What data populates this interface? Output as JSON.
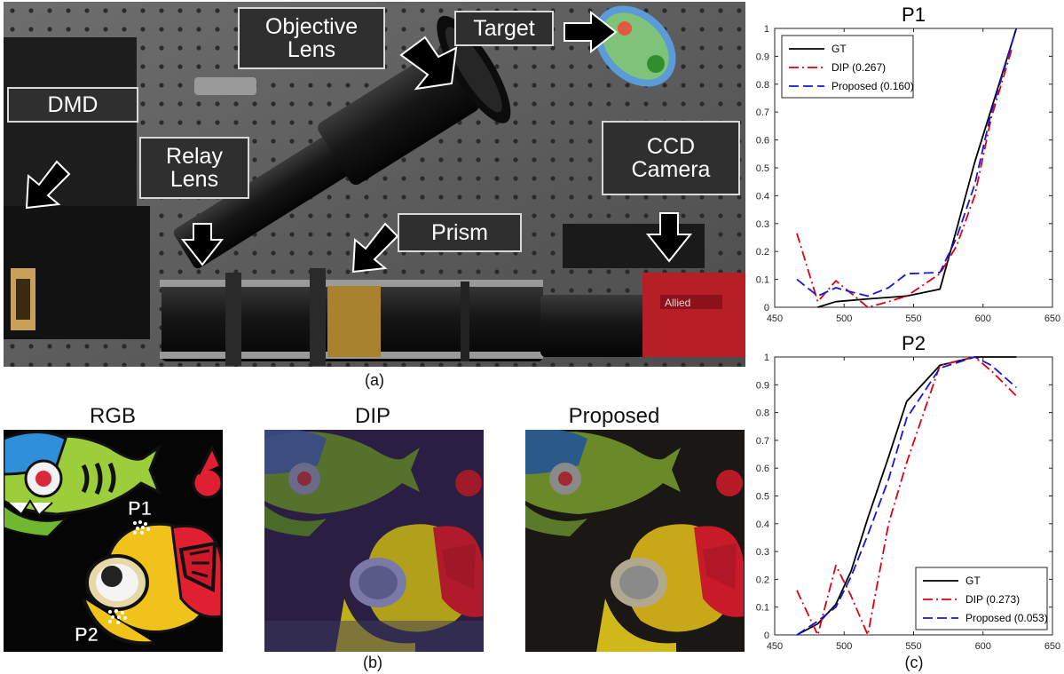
{
  "panel_a": {
    "labels": {
      "objective": "Objective\nLens",
      "target": "Target",
      "dmd": "DMD",
      "relay": "Relay\nLens",
      "ccd": "CCD\nCamera",
      "prism": "Prism"
    },
    "camera_brand": "Allied",
    "caption": "(a)"
  },
  "panel_b": {
    "titles": {
      "rgb": "RGB",
      "dip": "DIP",
      "proposed": "Proposed"
    },
    "points": {
      "p1": "P1",
      "p2": "P2"
    },
    "caption": "(b)"
  },
  "panel_c": {
    "caption": "(c)"
  },
  "chart_data": [
    {
      "type": "line",
      "title": "P1",
      "xlim": [
        450,
        650
      ],
      "ylim": [
        0,
        1
      ],
      "xticks": [
        450,
        500,
        550,
        600,
        650
      ],
      "yticks": [
        0,
        0.1,
        0.2,
        0.3,
        0.4,
        0.5,
        0.6,
        0.7,
        0.8,
        0.9,
        1
      ],
      "legend_position": "top-left",
      "series": [
        {
          "name": "GT",
          "color": "#000000",
          "dash": "solid",
          "x": [
            481,
            494,
            517,
            545,
            569,
            581,
            594,
            624
          ],
          "y": [
            0.0,
            0.02,
            0.03,
            0.04,
            0.065,
            0.28,
            0.52,
            1.0
          ]
        },
        {
          "name": "DIP (0.267)",
          "color": "#e0000f",
          "dash": "dashdot",
          "x": [
            466,
            481,
            494,
            505,
            517,
            532,
            545,
            569,
            581,
            594,
            606,
            621
          ],
          "y": [
            0.265,
            0.02,
            0.095,
            0.05,
            0.0,
            0.02,
            0.04,
            0.12,
            0.22,
            0.4,
            0.68,
            0.93
          ]
        },
        {
          "name": "Proposed (0.160)",
          "color": "#1515e0",
          "dash": "dash",
          "x": [
            466,
            481,
            494,
            505,
            517,
            532,
            545,
            569,
            581,
            594,
            606,
            624
          ],
          "y": [
            0.1,
            0.04,
            0.07,
            0.055,
            0.04,
            0.07,
            0.12,
            0.125,
            0.25,
            0.44,
            0.7,
            1.0
          ]
        }
      ]
    },
    {
      "type": "line",
      "title": "P2",
      "xlim": [
        450,
        650
      ],
      "ylim": [
        0,
        1
      ],
      "xticks": [
        450,
        500,
        550,
        600,
        650
      ],
      "yticks": [
        0,
        0.1,
        0.2,
        0.3,
        0.4,
        0.5,
        0.6,
        0.7,
        0.8,
        0.9,
        1
      ],
      "legend_position": "bottom-right",
      "series": [
        {
          "name": "GT",
          "color": "#000000",
          "dash": "solid",
          "x": [
            466,
            481,
            494,
            505,
            517,
            532,
            545,
            569,
            594,
            624
          ],
          "y": [
            0.0,
            0.04,
            0.11,
            0.23,
            0.42,
            0.64,
            0.84,
            0.97,
            1.0,
            1.0
          ]
        },
        {
          "name": "DIP (0.273)",
          "color": "#e0000f",
          "dash": "dashdot",
          "x": [
            466,
            481,
            494,
            505,
            517,
            532,
            545,
            569,
            594,
            606,
            624
          ],
          "y": [
            0.16,
            0.0,
            0.25,
            0.14,
            0.0,
            0.4,
            0.62,
            0.97,
            1.0,
            0.95,
            0.86
          ]
        },
        {
          "name": "Proposed (0.053)",
          "color": "#1515e0",
          "dash": "dash",
          "x": [
            466,
            481,
            494,
            505,
            517,
            532,
            545,
            569,
            594,
            606,
            624
          ],
          "y": [
            0.0,
            0.05,
            0.1,
            0.21,
            0.36,
            0.56,
            0.78,
            0.96,
            1.0,
            0.97,
            0.89
          ]
        }
      ]
    }
  ]
}
